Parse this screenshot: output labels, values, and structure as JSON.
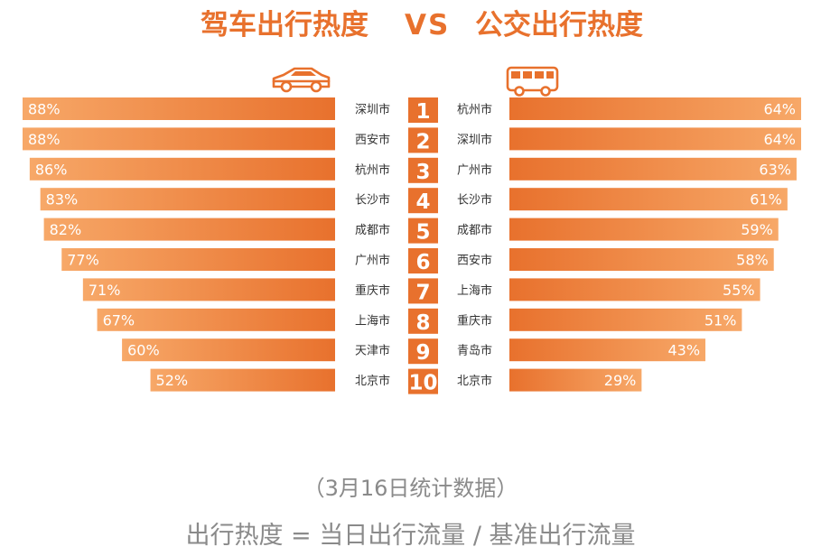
{
  "header": {
    "left_title": "驾车出行热度",
    "vs": "VS",
    "right_title": "公交出行热度"
  },
  "icons": {
    "left": "car-icon",
    "right": "bus-icon"
  },
  "colors": {
    "title": "#e8712d",
    "rank_box": "#e8712d",
    "bar_dark": "#e8712d",
    "bar_light": "#f7a868",
    "footer_text": "#8a8a8a"
  },
  "chart_data": {
    "type": "bar",
    "ranks": [
      "1",
      "2",
      "3",
      "4",
      "5",
      "6",
      "7",
      "8",
      "9",
      "10"
    ],
    "series": [
      {
        "name": "驾车出行热度",
        "categories": [
          "深圳市",
          "西安市",
          "杭州市",
          "长沙市",
          "成都市",
          "广州市",
          "重庆市",
          "上海市",
          "天津市",
          "北京市"
        ],
        "values": [
          88,
          88,
          86,
          83,
          82,
          77,
          71,
          67,
          60,
          52
        ],
        "labels": [
          "88%",
          "88%",
          "86%",
          "83%",
          "82%",
          "77%",
          "71%",
          "67%",
          "60%",
          "52%"
        ]
      },
      {
        "name": "公交出行热度",
        "categories": [
          "杭州市",
          "深圳市",
          "广州市",
          "长沙市",
          "成都市",
          "西安市",
          "上海市",
          "重庆市",
          "青岛市",
          "北京市"
        ],
        "values": [
          64,
          64,
          63,
          61,
          59,
          58,
          55,
          51,
          43,
          29
        ],
        "labels": [
          "64%",
          "64%",
          "63%",
          "61%",
          "59%",
          "58%",
          "55%",
          "51%",
          "43%",
          "29%"
        ]
      }
    ]
  },
  "footer": {
    "date_note": "（3月16日统计数据）",
    "formula": "出行热度 = 当日出行流量 / 基准出行流量"
  }
}
